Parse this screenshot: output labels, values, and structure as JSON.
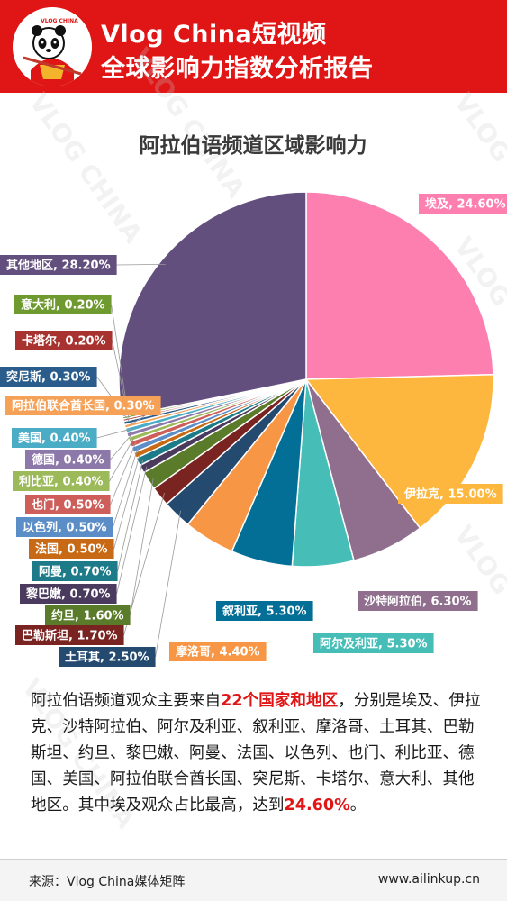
{
  "header": {
    "title_line1": "Vlog China短视频",
    "title_line2": "全球影响力指数分析报告",
    "logo_text": "VLOG CHINA"
  },
  "watermark_text": "VLOG CHINA",
  "chart_data": {
    "type": "pie",
    "title": "阿拉伯语频道区域影响力",
    "unit": "%",
    "slices": [
      {
        "label": "埃及",
        "value": 24.6,
        "color": "#fd7fb0",
        "label_text": "埃及, 24.60%"
      },
      {
        "label": "伊拉克",
        "value": 15.0,
        "color": "#fdb73e",
        "label_text": "伊拉克, 15.00%"
      },
      {
        "label": "沙特阿拉伯",
        "value": 6.3,
        "color": "#8f6f8d",
        "label_text": "沙特阿拉伯, 6.30%"
      },
      {
        "label": "阿尔及利亚",
        "value": 5.3,
        "color": "#46bdb7",
        "label_text": "阿尔及利亚, 5.30%"
      },
      {
        "label": "叙利亚",
        "value": 5.3,
        "color": "#036e96",
        "label_text": "叙利亚, 5.30%"
      },
      {
        "label": "摩洛哥",
        "value": 4.4,
        "color": "#f79746",
        "label_text": "摩洛哥, 4.40%"
      },
      {
        "label": "土耳其",
        "value": 2.5,
        "color": "#244a70",
        "label_text": "土耳其, 2.50%"
      },
      {
        "label": "巴勒斯坦",
        "value": 1.7,
        "color": "#7a2422",
        "label_text": "巴勒斯坦, 1.70%"
      },
      {
        "label": "约旦",
        "value": 1.6,
        "color": "#5a7b2a",
        "label_text": "约旦, 1.60%"
      },
      {
        "label": "黎巴嫩",
        "value": 0.7,
        "color": "#4a3a5e",
        "label_text": "黎巴嫩, 0.70%"
      },
      {
        "label": "阿曼",
        "value": 0.7,
        "color": "#1d7a88",
        "label_text": "阿曼, 0.70%"
      },
      {
        "label": "法国",
        "value": 0.5,
        "color": "#c86915",
        "label_text": "法国, 0.50%"
      },
      {
        "label": "以色列",
        "value": 0.5,
        "color": "#5b8dc7",
        "label_text": "以色列, 0.50%"
      },
      {
        "label": "也门",
        "value": 0.5,
        "color": "#cd5e5a",
        "label_text": "也门, 0.50%"
      },
      {
        "label": "利比亚",
        "value": 0.4,
        "color": "#9cba5a",
        "label_text": "利比亚, 0.40%"
      },
      {
        "label": "德国",
        "value": 0.4,
        "color": "#8d78aa",
        "label_text": "德国, 0.40%"
      },
      {
        "label": "美国",
        "value": 0.4,
        "color": "#4bacc6",
        "label_text": "美国, 0.40%"
      },
      {
        "label": "阿拉伯联合酋长国",
        "value": 0.3,
        "color": "#f5a157",
        "label_text": "阿拉伯联合酋长国, 0.30%"
      },
      {
        "label": "突尼斯",
        "value": 0.3,
        "color": "#2a5c8c",
        "label_text": "突尼斯, 0.30%"
      },
      {
        "label": "卡塔尔",
        "value": 0.2,
        "color": "#a8322f",
        "label_text": "卡塔尔, 0.20%"
      },
      {
        "label": "意大利",
        "value": 0.2,
        "color": "#6f9a2f",
        "label_text": "意大利, 0.20%"
      },
      {
        "label": "其他地区",
        "value": 28.2,
        "color": "#634f7e",
        "label_text": "其他地区, 28.20%"
      }
    ]
  },
  "summary": {
    "text_before": "阿拉伯语频道观众主要来自",
    "highlight1": "22个国家和地区",
    "text_middle": "，分别是埃及、伊拉克、沙特阿拉伯、阿尔及利亚、叙利亚、摩洛哥、土耳其、巴勒斯坦、约旦、黎巴嫩、阿曼、法国、以色列、也门、利比亚、德国、美国、阿拉伯联合酋长国、突尼斯、卡塔尔、意大利、其他地区。其中埃及观众占比最高，达到",
    "highlight2": "24.60%",
    "text_after": "。"
  },
  "footer": {
    "source": "来源：Vlog China媒体矩阵",
    "url": "www.ailinkup.cn"
  }
}
